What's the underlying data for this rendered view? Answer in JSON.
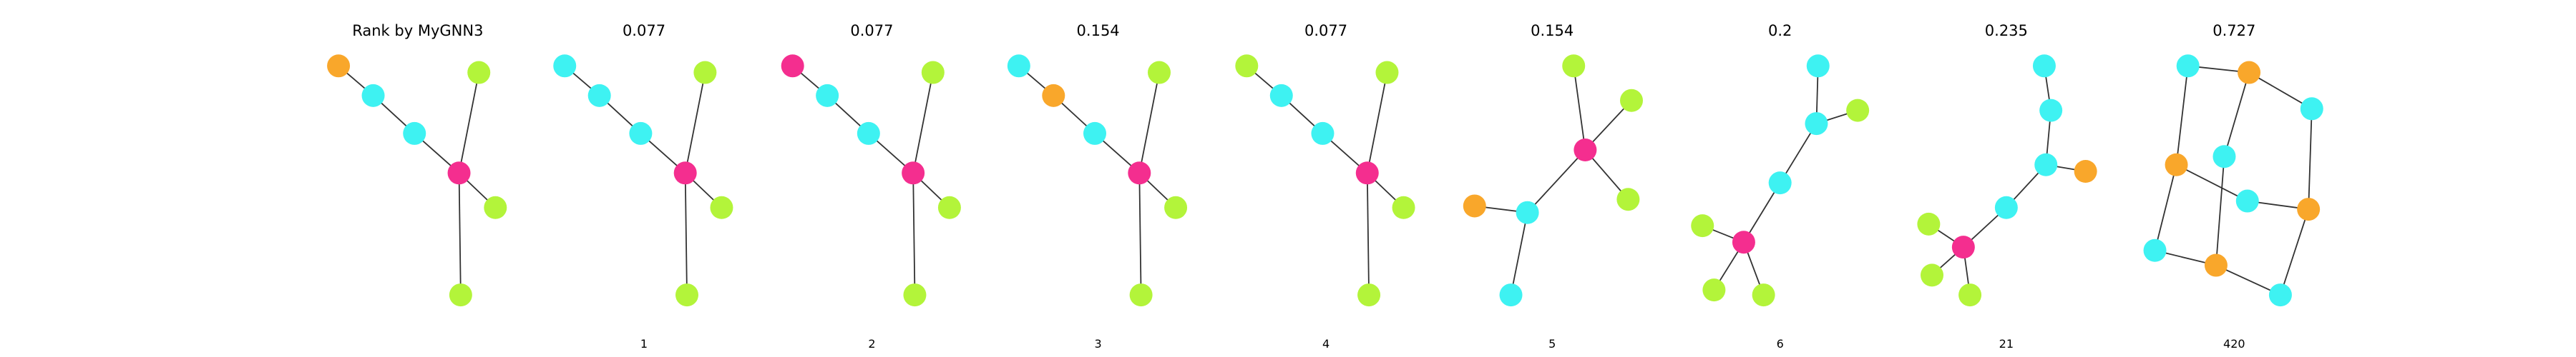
{
  "panels": [
    {
      "title": "Rank by MyGNN3"
    },
    {
      "title": "0.077",
      "label": "1"
    },
    {
      "title": "0.077",
      "label": "2"
    },
    {
      "title": "0.154",
      "label": "3"
    },
    {
      "title": "0.077",
      "label": "4"
    },
    {
      "title": "0.154",
      "label": "5"
    },
    {
      "title": "0.2",
      "label": "6"
    },
    {
      "title": "0.235",
      "label": "21"
    },
    {
      "title": "0.727",
      "label": "420"
    }
  ]
}
